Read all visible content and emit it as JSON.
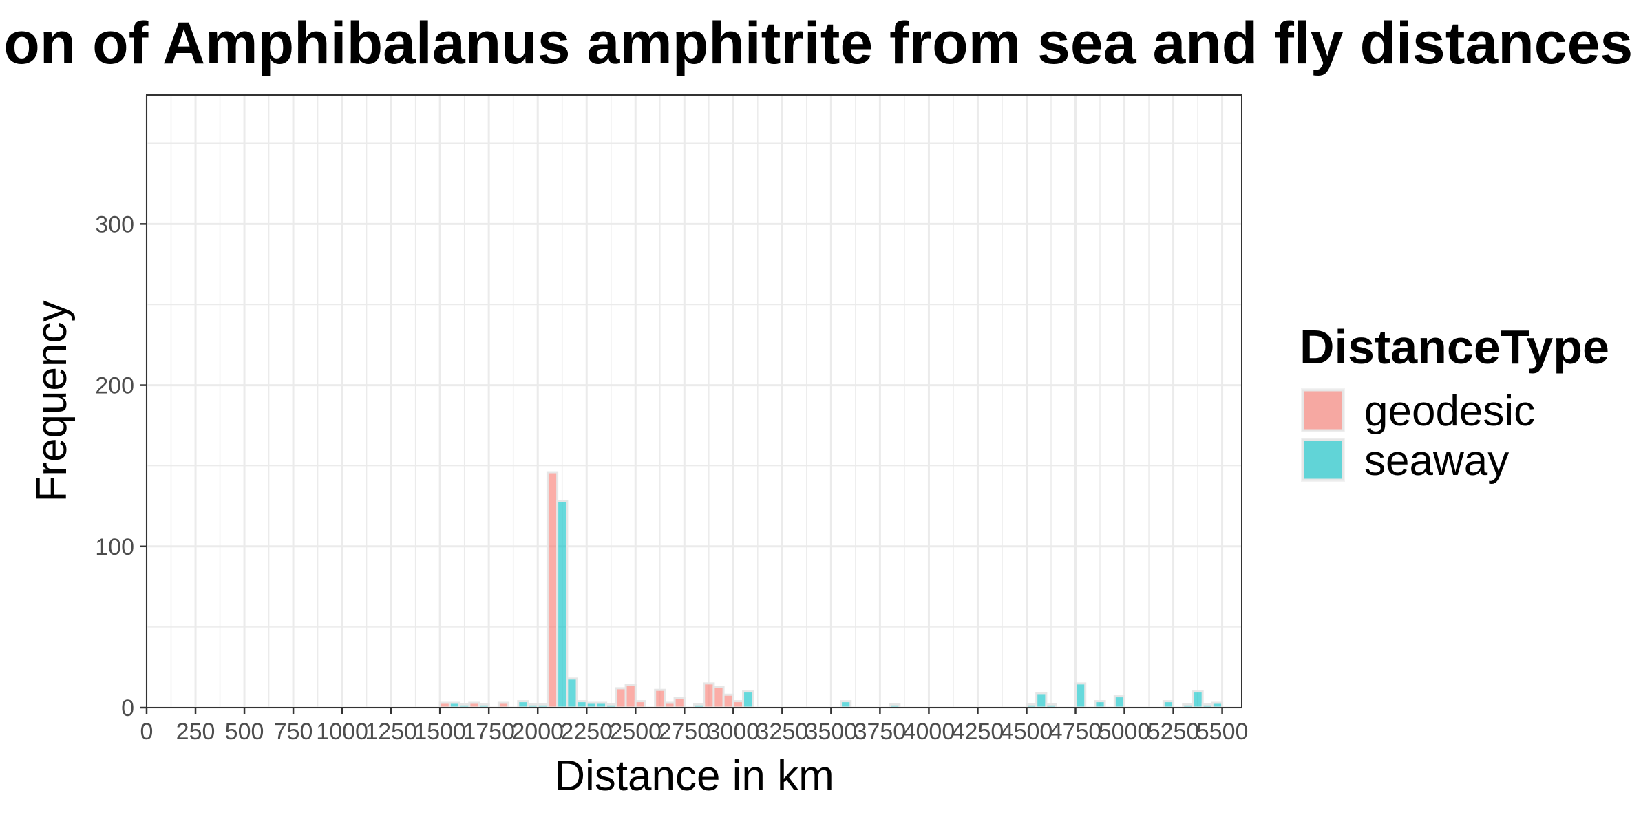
{
  "colors": {
    "geodesic": "#F8766D",
    "seaway": "#00BFC4",
    "grid": "#EBEBEB",
    "panel_border": "#333333",
    "bar_outline": "#E6E6E6"
  },
  "chart_data": {
    "type": "bar",
    "title": "Distribution of Amphibalanus amphitrite from sea and fly distances",
    "xlabel": "Distance in km",
    "ylabel": "Frequency",
    "xlim": [
      0,
      5600
    ],
    "ylim": [
      0,
      380
    ],
    "x_ticks": [
      0,
      250,
      500,
      750,
      1000,
      1250,
      1500,
      1750,
      2000,
      2250,
      2500,
      2750,
      3000,
      3250,
      3500,
      3750,
      4000,
      4250,
      4500,
      4750,
      5000,
      5250,
      5500
    ],
    "x_tick_labels": [
      "0",
      "250",
      "500",
      "750",
      "1000",
      "1250",
      "1500",
      "1750",
      "2000",
      "2250",
      "2500",
      "2750",
      "3000",
      "3250",
      "3500",
      "3750",
      "4000",
      "4250",
      "4500",
      "4750",
      "5000",
      "5250",
      "5500"
    ],
    "y_ticks": [
      0,
      100,
      200,
      300
    ],
    "y_tick_labels": [
      "0",
      "100",
      "200",
      "300"
    ],
    "bin_width": 50,
    "grid": true,
    "legend": {
      "title": "DistanceType",
      "position": "right"
    },
    "series": [
      {
        "name": "geodesic",
        "x": [
          1500,
          1650,
          1800,
          2050,
          2400,
          2450,
          2500,
          2600,
          2650,
          2700,
          2850,
          2900,
          2950,
          3000
        ],
        "values": [
          3,
          3,
          3,
          146,
          12,
          14,
          4,
          11,
          3,
          6,
          15,
          13,
          8,
          4
        ]
      },
      {
        "name": "seaway",
        "x": [
          1550,
          1600,
          1700,
          1900,
          1950,
          2000,
          2100,
          2150,
          2200,
          2250,
          2300,
          2350,
          2800,
          3050,
          3550,
          3800,
          4500,
          4550,
          4600,
          4750,
          4850,
          4950,
          5200,
          5300,
          5350,
          5400,
          5450
        ],
        "values": [
          3,
          2,
          2,
          4,
          2,
          2,
          128,
          18,
          4,
          3,
          3,
          2,
          2,
          10,
          4,
          2,
          2,
          9,
          2,
          15,
          4,
          7,
          4,
          2,
          10,
          2,
          3
        ]
      }
    ]
  }
}
